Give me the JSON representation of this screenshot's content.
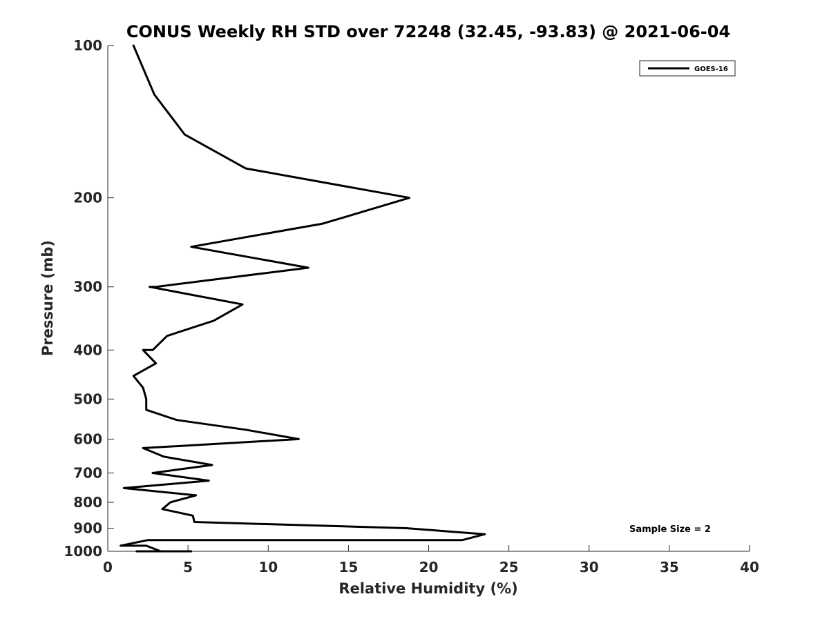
{
  "chart_data": {
    "type": "line",
    "title": "CONUS Weekly RH STD over 72248 (32.45, -93.83) @ 2021-06-04",
    "xlabel": "Relative Humidity (%)",
    "ylabel": "Pressure (mb)",
    "xlim": [
      0,
      40
    ],
    "ylim": [
      100,
      1000
    ],
    "y_scale": "log",
    "y_reversed": true,
    "x_ticks": [
      0,
      5,
      10,
      15,
      20,
      25,
      30,
      35,
      40
    ],
    "y_ticks": [
      100,
      200,
      300,
      400,
      500,
      600,
      700,
      800,
      900,
      1000
    ],
    "grid": false,
    "legend_position": "top-right",
    "annotation": "Sample Size = 2",
    "series": [
      {
        "name": "GOES-16",
        "color": "#000000",
        "x": [
          1.6,
          2.9,
          4.8,
          8.6,
          18.8,
          13.4,
          5.2,
          12.5,
          3.0,
          2.6,
          8.4,
          6.6,
          3.7,
          2.8,
          2.2,
          3.0,
          1.6,
          2.2,
          2.4,
          2.4,
          4.3,
          8.6,
          11.9,
          2.2,
          3.5,
          6.5,
          2.8,
          6.3,
          1.0,
          5.5,
          3.9,
          3.4,
          5.3,
          5.4,
          18.6,
          23.5,
          22.1,
          2.5,
          0.8,
          1.0,
          2.4,
          3.3,
          1.8,
          5.2
        ],
        "y": [
          100,
          125,
          150,
          175,
          200,
          225,
          250,
          275,
          300,
          300,
          325,
          350,
          375,
          400,
          400,
          425,
          450,
          475,
          500,
          525,
          550,
          575,
          600,
          625,
          650,
          675,
          700,
          725,
          750,
          775,
          800,
          825,
          850,
          875,
          900,
          925,
          950,
          950,
          975,
          975,
          975,
          1000,
          1000,
          1000
        ]
      }
    ]
  }
}
